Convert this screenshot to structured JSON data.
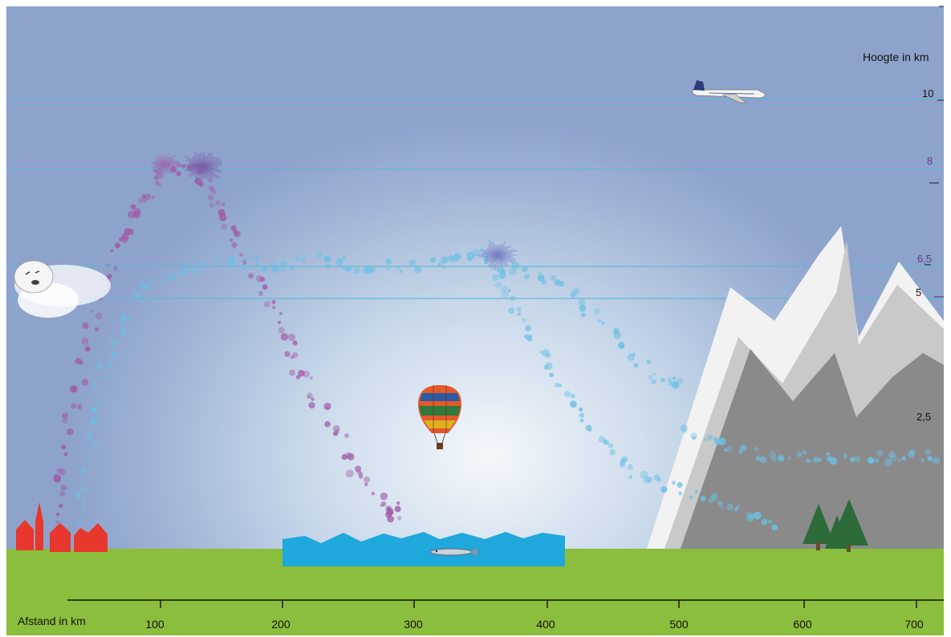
{
  "labels": {
    "altitude_axis": "Hoogte in km",
    "distance_axis": "Afstand in km"
  },
  "altitude_ticks": [
    {
      "label": "10",
      "km": 10,
      "color": "#111111"
    },
    {
      "label": "8",
      "km": 8,
      "color": "#5a3d8a"
    },
    {
      "label": "6,5",
      "km": 6.5,
      "color": "#5a3d8a"
    },
    {
      "label": "5",
      "km": 5,
      "color": "#111111"
    },
    {
      "label": "2,5",
      "km": 2.5,
      "color": "#111111"
    }
  ],
  "distance_ticks": [
    "100",
    "200",
    "300",
    "400",
    "500",
    "600",
    "700"
  ],
  "colors": {
    "sky_top": "#8ea3cc",
    "sky_center": "#f4f8fc",
    "reference_line": "#5fb8d8",
    "ground": "#8bbe3c",
    "water": "#1fa8dc",
    "houses": "#e8372c",
    "purple_trail": "#a15aa6",
    "blue_trail": "#6cc0e4",
    "mountain_light": "#f2f2f2",
    "mountain_mid": "#c9c9c9",
    "mountain_dark": "#8a8a8a",
    "trees": "#2d6b3a"
  },
  "icons": [
    "cloud-face-icon",
    "airplane-icon",
    "hot-air-balloon-icon",
    "fish-icon",
    "house-icon",
    "tree-icon",
    "mountain-icon",
    "firework-burst-icon"
  ]
}
